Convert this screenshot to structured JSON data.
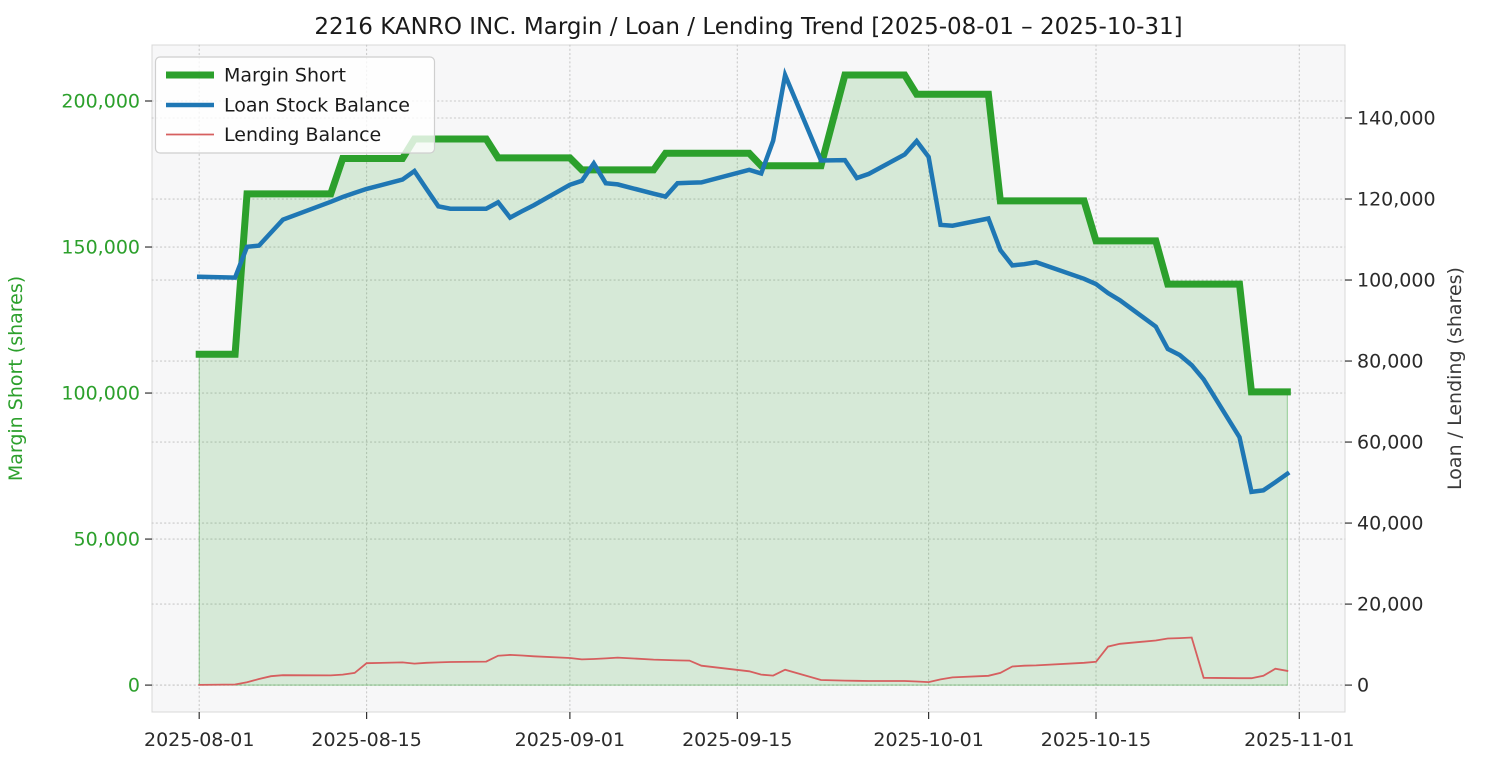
{
  "title": "2216 KANRO INC. Margin / Loan / Lending Trend [2025-08-01 – 2025-10-31]",
  "axes": {
    "left_label": "Margin Short (shares)",
    "right_label": "Loan / Lending (shares)",
    "x_tick_dates": [
      "2025-08-01",
      "2025-08-15",
      "2025-09-01",
      "2025-09-15",
      "2025-10-01",
      "2025-10-15",
      "2025-11-01"
    ],
    "left_tick_values": [
      0,
      50000,
      100000,
      150000,
      200000
    ],
    "left_tick_labels": [
      "0",
      "50,000",
      "100,000",
      "150,000",
      "200,000"
    ],
    "right_tick_values": [
      0,
      20000,
      40000,
      60000,
      80000,
      100000,
      120000,
      140000
    ],
    "right_tick_labels": [
      "0",
      "20,000",
      "40,000",
      "60,000",
      "80,000",
      "100,000",
      "120,000",
      "140,000"
    ]
  },
  "legend": {
    "items": [
      {
        "label": "Margin Short",
        "color": "#2ca02c",
        "linewidth": 7
      },
      {
        "label": "Loan Stock Balance",
        "color": "#1f77b4",
        "linewidth": 4.5
      },
      {
        "label": "Lending Balance",
        "color": "#d65f5f",
        "linewidth": 1.8
      }
    ]
  },
  "colors": {
    "margin_green": "#2ca02c",
    "loan_blue": "#1f77b4",
    "lending_red": "#d65f5f",
    "fill_green": "#2ca02c",
    "fill_opacity": 0.16,
    "plot_background": "#f7f7f8",
    "gridline": "#c9c9c9",
    "tick_mark": "#333333",
    "tick_label_dark": "#2b2b2b",
    "title_color": "#1a1a1a"
  },
  "chart_data": {
    "type": "line",
    "title": "2216 KANRO INC. Margin / Loan / Lending Trend [2025-08-01 – 2025-10-31]",
    "xlabel": "",
    "ylabel_left": "Margin Short (shares)",
    "ylabel_right": "Loan / Lending (shares)",
    "grid": "dotted, both axes",
    "legend_position": "upper left",
    "left_ylim": [
      0,
      219000
    ],
    "right_ylim": [
      0,
      157000
    ],
    "x": [
      "2025-08-01",
      "2025-08-04",
      "2025-08-05",
      "2025-08-06",
      "2025-08-07",
      "2025-08-08",
      "2025-08-12",
      "2025-08-13",
      "2025-08-14",
      "2025-08-15",
      "2025-08-18",
      "2025-08-19",
      "2025-08-20",
      "2025-08-21",
      "2025-08-22",
      "2025-08-25",
      "2025-08-26",
      "2025-08-27",
      "2025-08-28",
      "2025-08-29",
      "2025-09-01",
      "2025-09-02",
      "2025-09-03",
      "2025-09-04",
      "2025-09-05",
      "2025-09-08",
      "2025-09-09",
      "2025-09-10",
      "2025-09-11",
      "2025-09-12",
      "2025-09-16",
      "2025-09-17",
      "2025-09-18",
      "2025-09-19",
      "2025-09-22",
      "2025-09-24",
      "2025-09-25",
      "2025-09-26",
      "2025-09-29",
      "2025-09-30",
      "2025-10-01",
      "2025-10-02",
      "2025-10-03",
      "2025-10-06",
      "2025-10-07",
      "2025-10-08",
      "2025-10-09",
      "2025-10-10",
      "2025-10-14",
      "2025-10-15",
      "2025-10-16",
      "2025-10-17",
      "2025-10-20",
      "2025-10-21",
      "2025-10-22",
      "2025-10-23",
      "2025-10-24",
      "2025-10-27",
      "2025-10-28",
      "2025-10-29",
      "2025-10-30",
      "2025-10-31"
    ],
    "series": [
      {
        "name": "Margin Short",
        "axis": "left",
        "style": "step-like weekly line, thick, area-filled to zero",
        "values": [
          113300,
          113300,
          168200,
          168200,
          168200,
          168200,
          168200,
          180300,
          180300,
          180300,
          180300,
          187000,
          187000,
          187000,
          187000,
          187000,
          180500,
          180500,
          180500,
          180500,
          180500,
          176400,
          176400,
          176400,
          176400,
          176400,
          182100,
          182100,
          182100,
          182100,
          182100,
          177800,
          177800,
          177800,
          177800,
          208900,
          208900,
          208900,
          208900,
          202300,
          202300,
          202300,
          202300,
          202300,
          165800,
          165800,
          165800,
          165800,
          165800,
          152100,
          152100,
          152100,
          152100,
          137300,
          137300,
          137300,
          137300,
          137300,
          100400,
          100400,
          100400,
          100400
        ]
      },
      {
        "name": "Loan Stock Balance",
        "axis": "right",
        "style": "solid medium line",
        "values": [
          100800,
          100600,
          108200,
          108500,
          111700,
          114900,
          119300,
          120500,
          121500,
          122500,
          124800,
          126900,
          122500,
          118200,
          117600,
          117600,
          119200,
          115400,
          117000,
          118500,
          123500,
          124500,
          128800,
          123900,
          123600,
          121300,
          120600,
          123900,
          124000,
          124100,
          127200,
          126300,
          134400,
          150600,
          129500,
          129600,
          125200,
          126200,
          131000,
          134300,
          130400,
          113600,
          113400,
          115200,
          107400,
          103600,
          103900,
          104400,
          100300,
          99000,
          96800,
          95000,
          88500,
          83000,
          81500,
          79000,
          75500,
          61200,
          47700,
          48100,
          50100,
          52200
        ]
      },
      {
        "name": "Lending Balance",
        "axis": "right",
        "style": "solid thin line",
        "values": [
          50,
          150,
          700,
          1500,
          2200,
          2450,
          2400,
          2600,
          3000,
          5400,
          5600,
          5300,
          5500,
          5600,
          5700,
          5800,
          7250,
          7450,
          7300,
          7100,
          6700,
          6350,
          6450,
          6600,
          6800,
          6300,
          6200,
          6100,
          6050,
          4800,
          3400,
          2600,
          2350,
          3800,
          1250,
          1100,
          1050,
          1000,
          1000,
          900,
          750,
          1400,
          1900,
          2300,
          3000,
          4600,
          4800,
          4870,
          5500,
          5750,
          9500,
          10200,
          11000,
          11500,
          11600,
          11750,
          1800,
          1700,
          1700,
          2300,
          4050,
          3500
        ]
      }
    ]
  }
}
